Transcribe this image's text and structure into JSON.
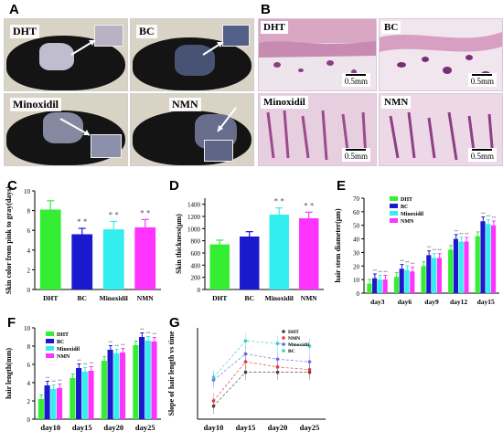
{
  "panels": {
    "A": "A",
    "B": "B",
    "C": "C",
    "D": "D",
    "E": "E",
    "F": "F",
    "G": "G"
  },
  "photo_labels": [
    "DHT",
    "BC",
    "Minoxidil",
    "NMN"
  ],
  "histo_labels": [
    "DHT",
    "BC",
    "Minoxidil",
    "NMN"
  ],
  "histo_scale": "0.5mm",
  "colors": {
    "DHT": "#33ee33",
    "BC": "#1a1acc",
    "Minoxidil": "#33eeee",
    "NMN": "#ff33ff"
  },
  "chart_data": [
    {
      "panel": "C",
      "type": "bar",
      "categories": [
        "DHT",
        "BC",
        "Minoxidil",
        "NMN"
      ],
      "values": [
        8.1,
        5.6,
        6.1,
        6.3
      ],
      "errors": [
        0.9,
        0.6,
        0.8,
        0.8
      ],
      "significance": [
        "",
        "* *",
        "* *",
        "* *"
      ],
      "ylabel": "Skin color from pink to gray(days)",
      "ylim": [
        0,
        10
      ],
      "yticks": [
        0,
        2,
        4,
        6,
        8,
        10
      ]
    },
    {
      "panel": "D",
      "type": "bar",
      "categories": [
        "DHT",
        "BC",
        "Minoxidil",
        "NMN"
      ],
      "values": [
        740,
        870,
        1230,
        1170
      ],
      "errors": [
        70,
        80,
        110,
        100
      ],
      "significance": [
        "",
        "",
        "* *",
        "* *"
      ],
      "ylabel": "Skin thickness(μm)",
      "ylim": [
        0,
        1500
      ],
      "yticks": [
        0,
        200,
        400,
        600,
        800,
        1000,
        1200,
        1400
      ]
    },
    {
      "panel": "E",
      "type": "bar",
      "categories": [
        "day3",
        "day6",
        "day9",
        "day12",
        "day15"
      ],
      "series": [
        {
          "name": "DHT",
          "values": [
            7,
            12,
            20,
            32,
            42
          ]
        },
        {
          "name": "BC",
          "values": [
            11,
            18,
            28,
            40,
            53
          ]
        },
        {
          "name": "Minoxidil",
          "values": [
            10,
            17,
            26,
            38,
            51
          ]
        },
        {
          "name": "NMN",
          "values": [
            10,
            16,
            26,
            38,
            50
          ]
        }
      ],
      "ylabel": "hair stem diameter(μm)",
      "ylim": [
        0,
        70
      ],
      "yticks": [
        0,
        10,
        20,
        30,
        40,
        50,
        60,
        70
      ]
    },
    {
      "panel": "F",
      "type": "bar",
      "categories": [
        "day10",
        "day15",
        "day20",
        "day25"
      ],
      "series": [
        {
          "name": "DHT",
          "values": [
            2.2,
            4.5,
            6.4,
            8.1
          ]
        },
        {
          "name": "BC",
          "values": [
            3.7,
            5.6,
            7.6,
            9.0
          ]
        },
        {
          "name": "Minoxidil",
          "values": [
            3.3,
            5.2,
            7.2,
            8.6
          ]
        },
        {
          "name": "NMN",
          "values": [
            3.4,
            5.3,
            7.3,
            8.5
          ]
        }
      ],
      "ylabel": "hair length(mm)",
      "ylim": [
        0,
        10
      ],
      "yticks": [
        0,
        2,
        4,
        6,
        8,
        10
      ]
    },
    {
      "panel": "G",
      "type": "line",
      "categories": [
        "day10",
        "day15",
        "day20",
        "day25"
      ],
      "series": [
        {
          "name": "DHT",
          "values": [
            0.2,
            0.33,
            0.33,
            0.33
          ]
        },
        {
          "name": "NMN",
          "values": [
            0.22,
            0.37,
            0.35,
            0.34
          ]
        },
        {
          "name": "Minoxidil",
          "values": [
            0.3,
            0.4,
            0.38,
            0.37
          ]
        },
        {
          "name": "BC",
          "values": [
            0.31,
            0.45,
            0.44,
            0.43
          ]
        }
      ],
      "series_colors": [
        "#404040",
        "#ee3333",
        "#6666ee",
        "#33cccc"
      ],
      "ylabel": "Slope of hair length vs time",
      "ylim": [
        0.15,
        0.5
      ]
    }
  ]
}
